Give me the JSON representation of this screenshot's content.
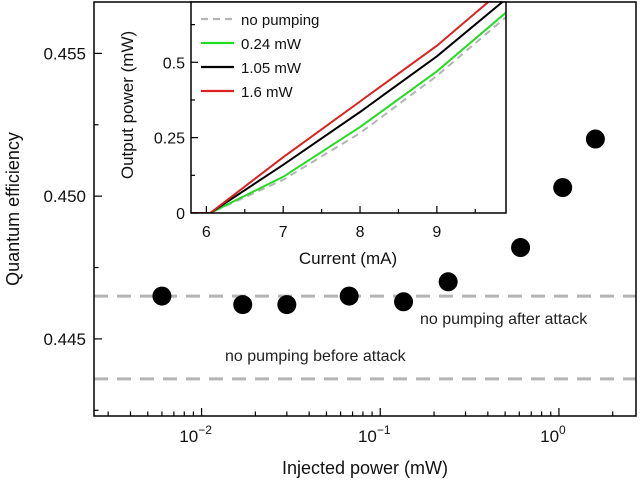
{
  "chart_data": [
    {
      "type": "scatter",
      "title": "",
      "xlabel": "Injected power (mW)",
      "ylabel": "Quantum efficiency",
      "xscale": "log",
      "xlim": [
        0.0025,
        2.7
      ],
      "ylim": [
        0.4423,
        0.4568
      ],
      "x_ticks": [
        {
          "value": 0.01,
          "base": "10",
          "exp": "−2"
        },
        {
          "value": 0.1,
          "base": "10",
          "exp": "−1"
        },
        {
          "value": 1,
          "base": "10",
          "exp": "0"
        }
      ],
      "y_ticks": [
        {
          "value": 0.445,
          "label": "0.445"
        },
        {
          "value": 0.45,
          "label": "0.450"
        },
        {
          "value": 0.455,
          "label": "0.455"
        }
      ],
      "points": [
        {
          "x": 0.006,
          "y": 0.4465
        },
        {
          "x": 0.017,
          "y": 0.4462
        },
        {
          "x": 0.03,
          "y": 0.4462
        },
        {
          "x": 0.067,
          "y": 0.4465
        },
        {
          "x": 0.135,
          "y": 0.4463
        },
        {
          "x": 0.24,
          "y": 0.447
        },
        {
          "x": 0.61,
          "y": 0.4482
        },
        {
          "x": 1.05,
          "y": 0.4503
        },
        {
          "x": 1.6,
          "y": 0.452
        }
      ],
      "reference_lines": [
        {
          "y": 0.4465,
          "label": "no pumping after attack",
          "style": "dashed",
          "color": "#b4b4b4"
        },
        {
          "y": 0.4436,
          "label": "no pumping before attack",
          "style": "dashed",
          "color": "#b4b4b4"
        }
      ],
      "marker_color": "#000000",
      "grid": false
    },
    {
      "type": "line",
      "title": "",
      "xlabel": "Current (mA)",
      "ylabel": "Output power (mW)",
      "xlim": [
        5.8,
        9.9
      ],
      "ylim": [
        0,
        0.7
      ],
      "x_ticks": [
        {
          "value": 6,
          "label": "6"
        },
        {
          "value": 7,
          "label": "7"
        },
        {
          "value": 8,
          "label": "8"
        },
        {
          "value": 9,
          "label": "9"
        }
      ],
      "y_ticks": [
        {
          "value": 0,
          "label": "0"
        },
        {
          "value": 0.25,
          "label": "0.25"
        },
        {
          "value": 0.5,
          "label": "0.5"
        }
      ],
      "legend_position": "top-left",
      "series": [
        {
          "name": "no pumping",
          "color": "#b4b4b4",
          "style": "dashed",
          "x": [
            5.8,
            6.05,
            7.0,
            8.0,
            9.0,
            9.9
          ],
          "y": [
            0,
            0,
            0.11,
            0.265,
            0.455,
            0.65
          ]
        },
        {
          "name": "0.24 mW",
          "color": "#22dd22",
          "style": "solid",
          "x": [
            5.8,
            6.05,
            7.0,
            8.0,
            9.0,
            9.9
          ],
          "y": [
            0,
            0,
            0.12,
            0.285,
            0.47,
            0.665
          ]
        },
        {
          "name": "1.05 mW",
          "color": "#000000",
          "style": "solid",
          "x": [
            5.8,
            6.05,
            7.0,
            8.0,
            9.0,
            9.9
          ],
          "y": [
            0,
            0,
            0.16,
            0.335,
            0.52,
            0.71
          ]
        },
        {
          "name": "1.6 mW",
          "color": "#dd2222",
          "style": "solid",
          "x": [
            5.8,
            6.05,
            7.0,
            8.0,
            9.0,
            9.9
          ],
          "y": [
            0,
            0,
            0.185,
            0.37,
            0.555,
            0.75
          ]
        }
      ]
    }
  ]
}
